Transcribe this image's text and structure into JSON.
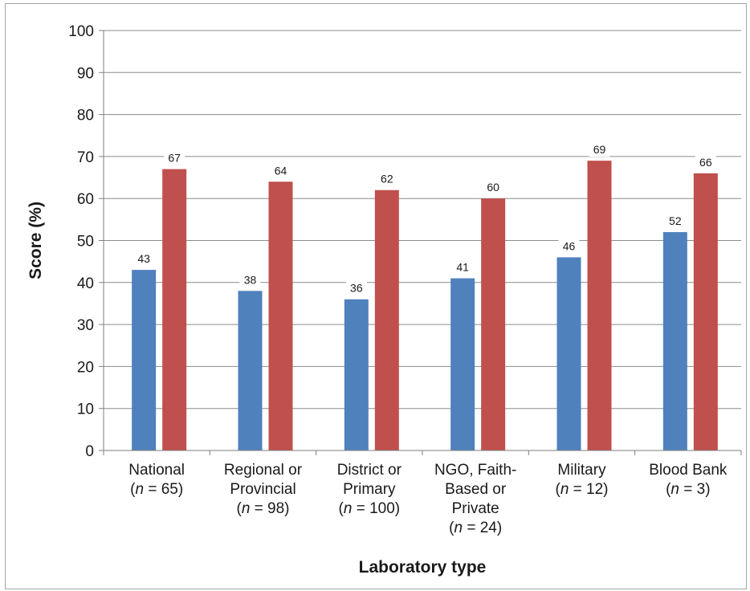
{
  "chart_data": {
    "type": "bar",
    "title": "",
    "xlabel": "Laboratory type",
    "ylabel": "Score (%)",
    "ylim": [
      0,
      100
    ],
    "yticks": [
      "0",
      "10",
      "20",
      "30",
      "40",
      "50",
      "60",
      "70",
      "80",
      "90",
      "100"
    ],
    "grid": true,
    "legend": "none",
    "categories": [
      {
        "lines": [
          "National",
          "(n = 65)"
        ]
      },
      {
        "lines": [
          "Regional or",
          "Provincial",
          "(n = 98)"
        ]
      },
      {
        "lines": [
          "District or",
          "Primary",
          "(n = 100)"
        ]
      },
      {
        "lines": [
          "NGO, Faith-",
          "Based or",
          "Private",
          "(n = 24)"
        ]
      },
      {
        "lines": [
          "Military",
          "(n = 12)"
        ]
      },
      {
        "lines": [
          "Blood Bank",
          "(n = 3)"
        ]
      }
    ],
    "series": [
      {
        "color": "#4f81bd",
        "values": [
          43,
          38,
          36,
          41,
          46,
          52
        ],
        "labels": [
          "43",
          "38",
          "36",
          "41",
          "46",
          "52"
        ]
      },
      {
        "color": "#c0504d",
        "values": [
          67,
          64,
          62,
          60,
          69,
          66
        ],
        "labels": [
          "67",
          "64",
          "62",
          "60",
          "69",
          "66"
        ]
      }
    ]
  }
}
